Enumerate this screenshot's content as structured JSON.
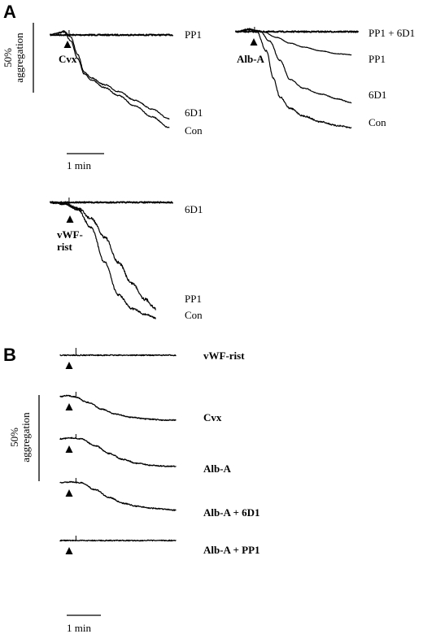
{
  "figure": {
    "panel_labels": [
      "A",
      "B"
    ],
    "scale_bars": {
      "aggregation": "50%\naggregation",
      "time_A": "1 min",
      "time_B": "1 min"
    }
  },
  "chart_data": [
    {
      "type": "line",
      "panel": "A",
      "agonist": "Cvx",
      "x_unit": "min",
      "y_unit": "% aggregation (decrease in light-transmission signal, downward)",
      "series": [
        {
          "name": "PP1",
          "points": [
            [
              0,
              0
            ],
            [
              0.5,
              0
            ],
            [
              1,
              0
            ],
            [
              2,
              0
            ],
            [
              3,
              0
            ],
            [
              3.6,
              0
            ]
          ]
        },
        {
          "name": "6D1",
          "points": [
            [
              0,
              0
            ],
            [
              0.2,
              -2
            ],
            [
              0.4,
              -4
            ],
            [
              0.6,
              2
            ],
            [
              0.8,
              20
            ],
            [
              1.0,
              38
            ],
            [
              1.2,
              44
            ],
            [
              1.6,
              51
            ],
            [
              2.0,
              58
            ],
            [
              2.5,
              67
            ],
            [
              3.0,
              76
            ],
            [
              3.5,
              86
            ]
          ]
        },
        {
          "name": "Con",
          "points": [
            [
              0,
              0
            ],
            [
              0.2,
              -2
            ],
            [
              0.4,
              -3
            ],
            [
              0.6,
              6
            ],
            [
              0.8,
              24
            ],
            [
              1.0,
              40
            ],
            [
              1.2,
              46
            ],
            [
              1.6,
              54
            ],
            [
              2.0,
              62
            ],
            [
              2.5,
              73
            ],
            [
              3.0,
              84
            ],
            [
              3.5,
              95
            ]
          ]
        }
      ]
    },
    {
      "type": "line",
      "panel": "A",
      "agonist": "Alb-A",
      "x_unit": "min",
      "y_unit": "% aggregation (decrease in light-transmission signal, downward)",
      "series": [
        {
          "name": "PP1 + 6D1",
          "points": [
            [
              0,
              0
            ],
            [
              0.5,
              0
            ],
            [
              1,
              0
            ],
            [
              2,
              0
            ],
            [
              3,
              0
            ],
            [
              3.6,
              0
            ]
          ]
        },
        {
          "name": "PP1",
          "points": [
            [
              0,
              0
            ],
            [
              0.4,
              -2
            ],
            [
              0.8,
              0
            ],
            [
              1.2,
              6
            ],
            [
              1.6,
              12
            ],
            [
              2.0,
              16
            ],
            [
              2.5,
              20
            ],
            [
              3.0,
              23
            ],
            [
              3.4,
              24
            ]
          ]
        },
        {
          "name": "6D1",
          "points": [
            [
              0,
              0
            ],
            [
              0.4,
              -2
            ],
            [
              0.7,
              -1
            ],
            [
              1.0,
              10
            ],
            [
              1.3,
              30
            ],
            [
              1.6,
              50
            ],
            [
              2.0,
              59
            ],
            [
              2.5,
              65
            ],
            [
              3.0,
              70
            ],
            [
              3.4,
              74
            ]
          ]
        },
        {
          "name": "Con",
          "points": [
            [
              0,
              0
            ],
            [
              0.4,
              -3
            ],
            [
              0.6,
              -1
            ],
            [
              0.9,
              20
            ],
            [
              1.1,
              48
            ],
            [
              1.3,
              68
            ],
            [
              1.6,
              80
            ],
            [
              2.0,
              88
            ],
            [
              2.5,
              94
            ],
            [
              3.0,
              98
            ],
            [
              3.4,
              100
            ]
          ]
        }
      ]
    },
    {
      "type": "line",
      "panel": "A",
      "agonist": "vWF-\nrist",
      "x_unit": "min",
      "y_unit": "% aggregation (decrease in light-transmission signal, downward)",
      "series": [
        {
          "name": "6D1",
          "points": [
            [
              0,
              0
            ],
            [
              0.5,
              0
            ],
            [
              1,
              0
            ],
            [
              2,
              0
            ],
            [
              3,
              0
            ],
            [
              3.6,
              0
            ]
          ]
        },
        {
          "name": "PP1",
          "points": [
            [
              0,
              0
            ],
            [
              0.4,
              1
            ],
            [
              0.8,
              5
            ],
            [
              1.2,
              14
            ],
            [
              1.6,
              30
            ],
            [
              2.0,
              52
            ],
            [
              2.4,
              70
            ],
            [
              2.8,
              84
            ],
            [
              3.1,
              92
            ]
          ]
        },
        {
          "name": "Con",
          "points": [
            [
              0,
              0
            ],
            [
              0.4,
              1
            ],
            [
              0.8,
              6
            ],
            [
              1.2,
              22
            ],
            [
              1.6,
              52
            ],
            [
              2.0,
              80
            ],
            [
              2.4,
              92
            ],
            [
              2.8,
              97
            ],
            [
              3.1,
              100
            ]
          ]
        }
      ]
    },
    {
      "type": "line",
      "panel": "B",
      "x_unit": "min",
      "y_unit": "% aggregation (decrease in light-transmission signal, downward)",
      "series": [
        {
          "name": "vWF-rist",
          "points": [
            [
              0,
              0
            ],
            [
              0.5,
              0
            ],
            [
              1,
              0
            ],
            [
              2,
              0
            ],
            [
              3,
              0
            ],
            [
              3.3,
              0
            ]
          ]
        },
        {
          "name": "Cvx",
          "points": [
            [
              0,
              0
            ],
            [
              0.2,
              -1
            ],
            [
              0.4,
              0
            ],
            [
              0.8,
              6
            ],
            [
              1.2,
              13
            ],
            [
              1.6,
              18
            ],
            [
              2.0,
              21
            ],
            [
              2.5,
              23
            ],
            [
              3.0,
              24
            ],
            [
              3.3,
              24
            ]
          ]
        },
        {
          "name": "Alb-A",
          "points": [
            [
              0,
              0
            ],
            [
              0.3,
              -1
            ],
            [
              0.6,
              0
            ],
            [
              1.0,
              7
            ],
            [
              1.4,
              15
            ],
            [
              1.8,
              21
            ],
            [
              2.2,
              25
            ],
            [
              2.6,
              27
            ],
            [
              3.0,
              28
            ],
            [
              3.3,
              28
            ]
          ]
        },
        {
          "name": "Alb-A + 6D1",
          "points": [
            [
              0,
              0
            ],
            [
              0.3,
              -1
            ],
            [
              0.6,
              0
            ],
            [
              1.0,
              7
            ],
            [
              1.4,
              15
            ],
            [
              1.8,
              21
            ],
            [
              2.2,
              24
            ],
            [
              2.6,
              26
            ],
            [
              3.0,
              27
            ],
            [
              3.3,
              28
            ]
          ]
        },
        {
          "name": "Alb-A + PP1",
          "points": [
            [
              0,
              0
            ],
            [
              0.5,
              0
            ],
            [
              1,
              0
            ],
            [
              2,
              0
            ],
            [
              3,
              0
            ],
            [
              3.3,
              0
            ]
          ]
        }
      ]
    }
  ]
}
